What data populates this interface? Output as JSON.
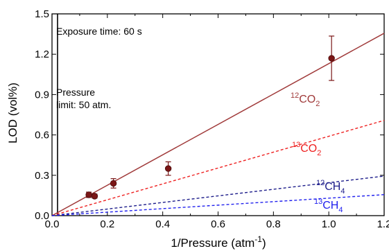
{
  "chart_data": {
    "type": "scatter",
    "xlabel": "1/Pressure (atm",
    "xlabel_sup": "-1",
    "xlabel_end": ")",
    "ylabel": "LOD (vol%)",
    "xlim": [
      0.0,
      1.2
    ],
    "ylim": [
      0.0,
      1.5
    ],
    "x_ticks": [
      0.0,
      0.2,
      0.4,
      0.6,
      0.8,
      1.0,
      1.2
    ],
    "x_tick_labels": [
      "0.0",
      "0.2",
      "0.4",
      "0.6",
      "0.8",
      "1.0",
      "1.2"
    ],
    "y_ticks": [
      0.0,
      0.3,
      0.6,
      0.9,
      1.2,
      1.5
    ],
    "y_tick_labels": [
      "0.0",
      "0.3",
      "0.6",
      "0.9",
      "1.2",
      "1.5"
    ],
    "annotations": {
      "exposure": "Exposure time: 60 s",
      "pressure_line1": "Pressure",
      "pressure_line2": "limit: 50 atm."
    },
    "pressure_limit_x": 0.02,
    "measured": {
      "name": "12CO2",
      "color": "#7a1616",
      "points": [
        {
          "x": 0.133,
          "y": 0.155,
          "err": 0.02
        },
        {
          "x": 0.154,
          "y": 0.145,
          "err": 0.015
        },
        {
          "x": 0.222,
          "y": 0.24,
          "err": 0.035
        },
        {
          "x": 0.42,
          "y": 0.35,
          "err": 0.05
        },
        {
          "x": 1.01,
          "y": 1.17,
          "err": 0.165
        }
      ]
    },
    "series": [
      {
        "name": "12CO2",
        "label_mass": "12",
        "label_formula": "CO",
        "label_sub": "2",
        "color": "#a03a3a",
        "style": "solid",
        "slope": 1.13
      },
      {
        "name": "13CO2",
        "label_mass": "13",
        "label_formula": "CO",
        "label_sub": "2",
        "color": "#ee2020",
        "style": "dashed",
        "slope": 0.59
      },
      {
        "name": "12CH4",
        "label_mass": "12",
        "label_formula": "CH",
        "label_sub": "4",
        "color": "#1c1c8a",
        "style": "dashed",
        "slope": 0.245
      },
      {
        "name": "13CH4",
        "label_mass": "13",
        "label_formula": "CH",
        "label_sub": "4",
        "color": "#2020ee",
        "style": "dashed",
        "slope": 0.13
      }
    ]
  }
}
